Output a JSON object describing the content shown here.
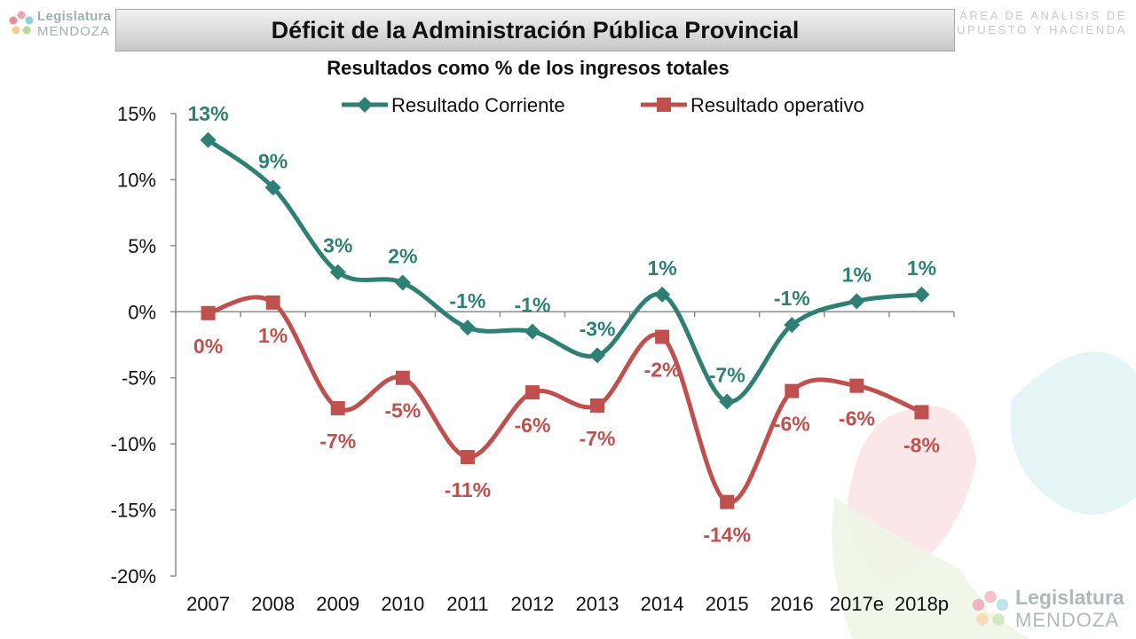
{
  "branding": {
    "logo_line1": "Legislatura",
    "logo_line2": "MENDOZA",
    "dept_line1": "ÁREA DE ANÁLISIS DE",
    "dept_line2": "PRESUPUESTO Y HACIENDA"
  },
  "title": "Déficit de la Administración Pública Provincial",
  "subtitle": "Resultados como % de los ingresos totales",
  "chart_data": {
    "type": "line",
    "categories": [
      "2007",
      "2008",
      "2009",
      "2010",
      "2011",
      "2012",
      "2013",
      "2014",
      "2015",
      "2016",
      "2017e",
      "2018p"
    ],
    "ylim": [
      -20,
      15
    ],
    "yticks": [
      15,
      10,
      5,
      0,
      -5,
      -10,
      -15,
      -20
    ],
    "ytick_labels": [
      "15%",
      "10%",
      "5%",
      "0%",
      "-5%",
      "-10%",
      "-15%",
      "-20%"
    ],
    "legend_position": "top",
    "grid": false,
    "series": [
      {
        "name": "Resultado Corriente",
        "color": "#2e7f74",
        "marker": "diamond",
        "values": [
          13.0,
          9.4,
          3.0,
          2.2,
          -1.2,
          -1.5,
          -3.3,
          1.3,
          -6.8,
          -1.0,
          0.8,
          1.3
        ],
        "labels": [
          "13%",
          "9%",
          "3%",
          "2%",
          "-1%",
          "-1%",
          "-3%",
          "1%",
          "-7%",
          "-1%",
          "1%",
          "1%"
        ]
      },
      {
        "name": "Resultado operativo",
        "color": "#c0504d",
        "marker": "square",
        "values": [
          -0.1,
          0.7,
          -7.3,
          -5.0,
          -11.0,
          -6.1,
          -7.1,
          -1.9,
          -14.4,
          -6.0,
          -5.6,
          -7.6
        ],
        "labels": [
          "0%",
          "1%",
          "-7%",
          "-5%",
          "-11%",
          "-6%",
          "-7%",
          "-2%",
          "-14%",
          "-6%",
          "-6%",
          "-8%"
        ]
      }
    ]
  }
}
